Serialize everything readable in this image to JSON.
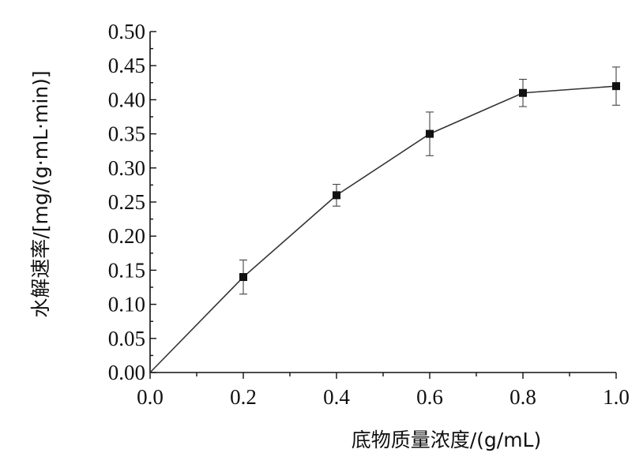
{
  "chart_data": {
    "type": "line",
    "title": "",
    "xlabel": "底物质量浓度/(g/mL)",
    "ylabel": "水解速率/[mg/(g·mL·min)]",
    "xlim": [
      0.0,
      1.0
    ],
    "ylim": [
      0.0,
      0.5
    ],
    "xticks": [
      0.0,
      0.2,
      0.4,
      0.6,
      0.8,
      1.0
    ],
    "xtick_labels": [
      "0.0",
      "0.2",
      "0.4",
      "0.6",
      "0.8",
      "1.0"
    ],
    "yticks": [
      0.0,
      0.05,
      0.1,
      0.15,
      0.2,
      0.25,
      0.3,
      0.35,
      0.4,
      0.45,
      0.5
    ],
    "ytick_labels": [
      "0.00",
      "0.05",
      "0.10",
      "0.15",
      "0.20",
      "0.25",
      "0.30",
      "0.35",
      "0.40",
      "0.45",
      "0.50"
    ],
    "grid": false,
    "legend": "none",
    "series": [
      {
        "x": [
          0.0,
          0.2,
          0.4,
          0.6,
          0.8,
          1.0
        ],
        "y": [
          0.0,
          0.14,
          0.26,
          0.35,
          0.41,
          0.42
        ],
        "error": [
          0.0,
          0.025,
          0.016,
          0.032,
          0.02,
          0.028
        ],
        "marker": "square",
        "color": "#111111"
      }
    ]
  }
}
